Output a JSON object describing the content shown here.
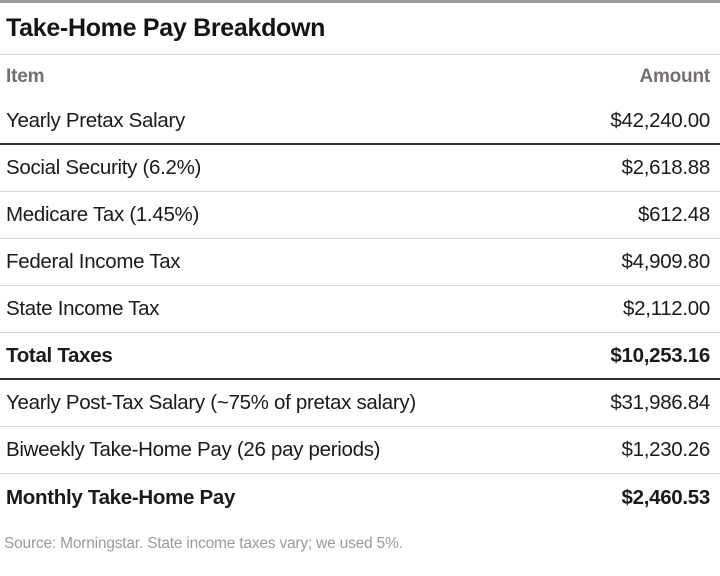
{
  "title": "Take-Home Pay Breakdown",
  "table": {
    "headers": {
      "item": "Item",
      "amount": "Amount"
    },
    "rows": [
      {
        "item": "Yearly Pretax Salary",
        "amount": "$42,240.00"
      },
      {
        "item": "Social Security (6.2%)",
        "amount": "$2,618.88"
      },
      {
        "item": "Medicare Tax (1.45%)",
        "amount": "$612.48"
      },
      {
        "item": "Federal Income Tax",
        "amount": "$4,909.80"
      },
      {
        "item": "State Income Tax",
        "amount": "$2,112.00"
      },
      {
        "item": "Total Taxes",
        "amount": "$10,253.16"
      },
      {
        "item": "Yearly Post-Tax Salary (~75% of pretax salary)",
        "amount": "$31,986.84"
      },
      {
        "item": "Biweekly Take-Home Pay (26 pay periods)",
        "amount": "$1,230.26"
      },
      {
        "item": "Monthly Take-Home Pay",
        "amount": "$2,460.53"
      }
    ]
  },
  "footer": {
    "source": "Source: Morningstar. State income taxes vary; we used 5%."
  },
  "colors": {
    "text": "#1a1a1a",
    "header_gray": "#757070",
    "footer_gray": "#9a9a9a",
    "separator_light": "#d9d9d9",
    "separator_dark": "#2e2e2e",
    "top_border": "#9a9a9a"
  },
  "chart_data": {
    "type": "table",
    "title": "Take-Home Pay Breakdown",
    "columns": [
      "Item",
      "Amount"
    ],
    "rows": [
      [
        "Yearly Pretax Salary",
        42240.0
      ],
      [
        "Social Security (6.2%)",
        2618.88
      ],
      [
        "Medicare Tax (1.45%)",
        612.48
      ],
      [
        "Federal Income Tax",
        4909.8
      ],
      [
        "State Income Tax",
        2112.0
      ],
      [
        "Total Taxes",
        10253.16
      ],
      [
        "Yearly Post-Tax Salary (~75% of pretax salary)",
        31986.84
      ],
      [
        "Biweekly Take-Home Pay (26 pay periods)",
        1230.26
      ],
      [
        "Monthly Take-Home Pay",
        2460.53
      ]
    ],
    "bold_rows": [
      "Total Taxes",
      "Monthly Take-Home Pay"
    ],
    "source_note": "Source: Morningstar. State income taxes vary; we used 5%."
  }
}
